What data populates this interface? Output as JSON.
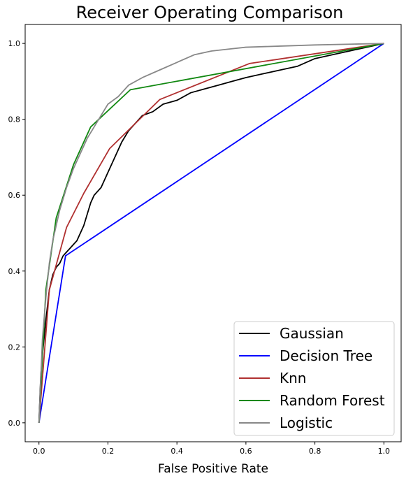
{
  "chart_data": {
    "type": "line",
    "title": "Receiver Operating Comparison",
    "xlabel": "False Positive Rate",
    "ylabel": "",
    "xlim": [
      -0.04,
      1.05
    ],
    "ylim": [
      -0.05,
      1.05
    ],
    "xticks": [
      "0.0",
      "0.2",
      "0.4",
      "0.6",
      "0.8",
      "1.0"
    ],
    "xtick_values": [
      0,
      0.2,
      0.4,
      0.6,
      0.8,
      1.0
    ],
    "yticks": [
      "0.0",
      "0.2",
      "0.4",
      "0.6",
      "0.8",
      "1.0"
    ],
    "ytick_values": [
      0,
      0.2,
      0.4,
      0.6,
      0.8,
      1.0
    ],
    "grid": false,
    "legend_position": "lower-right",
    "series": [
      {
        "name": "Gaussian",
        "color": "#000000",
        "x": [
          0,
          0.005,
          0.01,
          0.02,
          0.03,
          0.04,
          0.05,
          0.06,
          0.07,
          0.08,
          0.09,
          0.1,
          0.11,
          0.12,
          0.13,
          0.14,
          0.15,
          0.16,
          0.18,
          0.2,
          0.22,
          0.24,
          0.26,
          0.28,
          0.3,
          0.33,
          0.36,
          0.4,
          0.44,
          0.48,
          0.52,
          0.56,
          0.6,
          0.65,
          0.7,
          0.75,
          0.8,
          0.85,
          0.9,
          0.95,
          1.0
        ],
        "y": [
          0,
          0.12,
          0.18,
          0.27,
          0.35,
          0.39,
          0.41,
          0.42,
          0.44,
          0.45,
          0.46,
          0.47,
          0.48,
          0.5,
          0.52,
          0.55,
          0.58,
          0.6,
          0.62,
          0.66,
          0.7,
          0.74,
          0.77,
          0.79,
          0.81,
          0.82,
          0.84,
          0.85,
          0.87,
          0.88,
          0.89,
          0.9,
          0.91,
          0.92,
          0.93,
          0.94,
          0.96,
          0.97,
          0.98,
          0.99,
          1.0
        ]
      },
      {
        "name": "Decision Tree",
        "color": "#0000ff",
        "x": [
          0,
          0.077,
          1.0
        ],
        "y": [
          0,
          0.44,
          1.0
        ]
      },
      {
        "name": "Knn",
        "color": "#b03030",
        "x": [
          0,
          0.03,
          0.08,
          0.13,
          0.205,
          0.35,
          0.61,
          1.0
        ],
        "y": [
          0,
          0.35,
          0.515,
          0.605,
          0.723,
          0.852,
          0.947,
          1.0
        ]
      },
      {
        "name": "Random Forest",
        "color": "#118811",
        "x": [
          0,
          0.02,
          0.05,
          0.1,
          0.15,
          0.265,
          1.0
        ],
        "y": [
          0,
          0.35,
          0.54,
          0.68,
          0.78,
          0.878,
          1.0
        ]
      },
      {
        "name": "Logistic",
        "color": "#888888",
        "x": [
          0,
          0.01,
          0.02,
          0.03,
          0.04,
          0.05,
          0.06,
          0.08,
          0.1,
          0.12,
          0.14,
          0.16,
          0.18,
          0.2,
          0.23,
          0.26,
          0.3,
          0.35,
          0.4,
          0.45,
          0.5,
          0.55,
          0.6,
          0.7,
          0.8,
          0.9,
          1.0
        ],
        "y": [
          0,
          0.22,
          0.33,
          0.42,
          0.48,
          0.52,
          0.56,
          0.62,
          0.67,
          0.71,
          0.75,
          0.78,
          0.81,
          0.84,
          0.86,
          0.89,
          0.91,
          0.93,
          0.95,
          0.97,
          0.98,
          0.985,
          0.99,
          0.993,
          0.996,
          0.998,
          1.0
        ]
      }
    ]
  }
}
